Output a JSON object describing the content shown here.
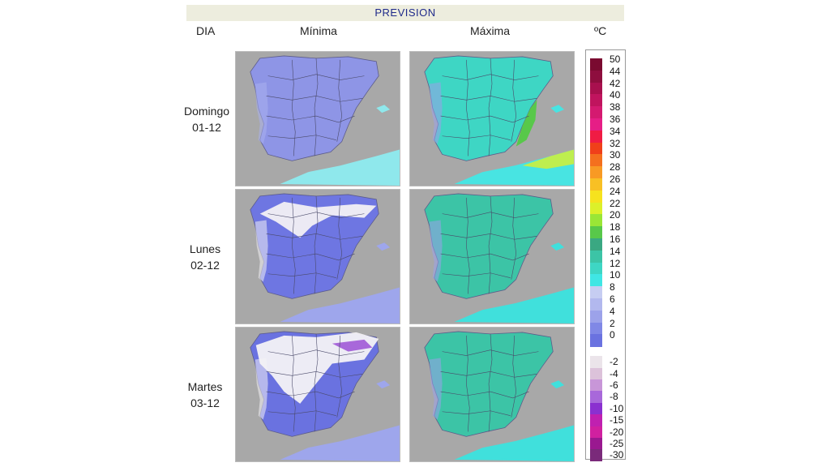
{
  "header": {
    "title": "PREVISION"
  },
  "columns": {
    "day": "DIA",
    "min": "Mínima",
    "max": "Máxima",
    "unit": "ºC"
  },
  "rows": [
    {
      "day": "Domingo",
      "date": "01-12"
    },
    {
      "day": "Lunes",
      "date": "02-12"
    },
    {
      "day": "Martes",
      "date": "03-12"
    }
  ],
  "legend": {
    "upper": [
      {
        "label": "50",
        "color": "#7a0a30"
      },
      {
        "label": "44",
        "color": "#8e0e3e"
      },
      {
        "label": "42",
        "color": "#a8104e"
      },
      {
        "label": "40",
        "color": "#c0145e"
      },
      {
        "label": "38",
        "color": "#d41a70"
      },
      {
        "label": "36",
        "color": "#e61e86"
      },
      {
        "label": "34",
        "color": "#f01c44"
      },
      {
        "label": "32",
        "color": "#f0401a"
      },
      {
        "label": "30",
        "color": "#f4701e"
      },
      {
        "label": "28",
        "color": "#f89a24"
      },
      {
        "label": "26",
        "color": "#f8c024"
      },
      {
        "label": "24",
        "color": "#f6e21e"
      },
      {
        "label": "22",
        "color": "#dcf02a"
      },
      {
        "label": "20",
        "color": "#9ae636"
      },
      {
        "label": "18",
        "color": "#58c84a"
      },
      {
        "label": "16",
        "color": "#3aa882"
      },
      {
        "label": "14",
        "color": "#3cc4a6"
      },
      {
        "label": "12",
        "color": "#3ed6c4"
      },
      {
        "label": "10",
        "color": "#40e6e4"
      },
      {
        "label": "8",
        "color": "#c6cdf2"
      },
      {
        "label": "6",
        "color": "#b2b8ee"
      },
      {
        "label": "4",
        "color": "#9ca2ea"
      },
      {
        "label": "2",
        "color": "#8088e6"
      },
      {
        "label": "0",
        "color": "#6a72e0"
      }
    ],
    "lower": [
      {
        "label": "-2",
        "color": "#ebe4ea"
      },
      {
        "label": "-4",
        "color": "#dcc2da"
      },
      {
        "label": "-6",
        "color": "#c896d8"
      },
      {
        "label": "-8",
        "color": "#a868da"
      },
      {
        "label": "-10",
        "color": "#8a30d0"
      },
      {
        "label": "-15",
        "color": "#c020b0"
      },
      {
        "label": "-20",
        "color": "#d020a0"
      },
      {
        "label": "-25",
        "color": "#9a1890"
      },
      {
        "label": "-30",
        "color": "#7a2a7a"
      }
    ]
  },
  "maps": [
    {
      "id": "min-domingo",
      "land": "#8e95e6",
      "accent": "#aab0ee",
      "sea": "#8fe8ec",
      "extra": "none"
    },
    {
      "id": "max-domingo",
      "land": "#3ed6c4",
      "accent": "#9aa0ea",
      "sea": "#48e4e2",
      "extra": "warm"
    },
    {
      "id": "min-lunes",
      "land": "#6e76e2",
      "accent": "#f2f0f4",
      "sea": "#9ea6ec",
      "extra": "snow"
    },
    {
      "id": "max-lunes",
      "land": "#3cc4a6",
      "accent": "#9aa0ea",
      "sea": "#40e0dc",
      "extra": "none"
    },
    {
      "id": "min-martes",
      "land": "#6a72e0",
      "accent": "#f4f2f6",
      "sea": "#9ea6ec",
      "extra": "heavy-snow"
    },
    {
      "id": "max-martes",
      "land": "#3cc4a6",
      "accent": "#9aa0ea",
      "sea": "#40e0dc",
      "extra": "none"
    }
  ]
}
